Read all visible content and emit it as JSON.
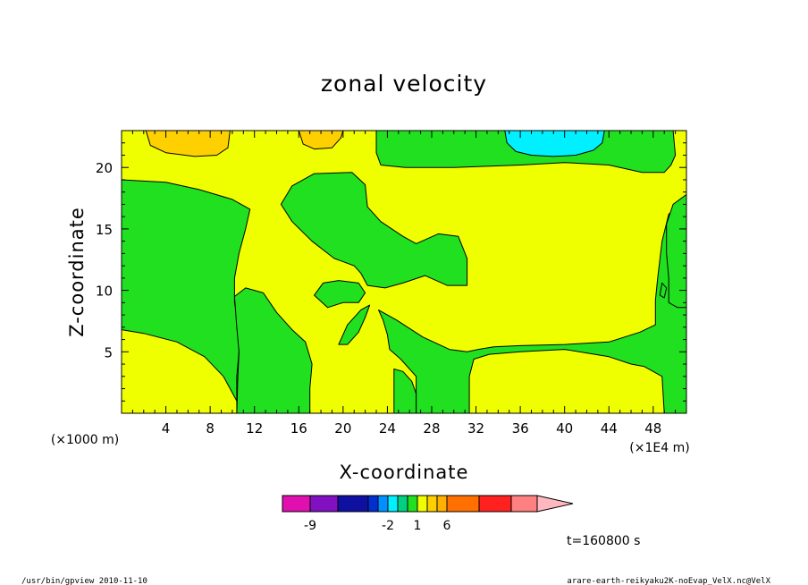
{
  "chart_data": {
    "type": "heatmap",
    "title": "zonal velocity",
    "xlabel": "X-coordinate",
    "ylabel": "Z-coordinate",
    "x_unit": "(×1000 m)",
    "x_scale": "(×1E4 m)",
    "xlim": [
      0,
      51
    ],
    "ylim": [
      0,
      23
    ],
    "x_ticks": [
      "4",
      "8",
      "12",
      "16",
      "20",
      "24",
      "28",
      "32",
      "36",
      "40",
      "44",
      "48"
    ],
    "y_ticks": [
      "5",
      "10",
      "15",
      "20"
    ],
    "levels": [
      {
        "color": "#e010b0"
      },
      {
        "color": "#8010c0"
      },
      {
        "color": "#1010a0"
      },
      {
        "color": "#0030d0"
      },
      {
        "color": "#0090ff"
      },
      {
        "color": "#00f0ff"
      },
      {
        "color": "#00d080"
      },
      {
        "color": "#20e020"
      },
      {
        "color": "#f0ff00"
      },
      {
        "color": "#ffd000"
      },
      {
        "color": "#ffb000"
      },
      {
        "color": "#ff7000"
      },
      {
        "color": "#ff2020"
      },
      {
        "color": "#ff8080"
      },
      {
        "color": "#ffb8c0"
      }
    ],
    "colorbar_labels": [
      {
        "text": "-9",
        "index": 1
      },
      {
        "text": "-2",
        "index": 5
      },
      {
        "text": "1",
        "index": 8
      },
      {
        "text": "6",
        "index": 11
      }
    ],
    "background_color": "#f0ff00",
    "regions": [
      {
        "name": "region-green-left",
        "color": "#20e020",
        "points": [
          [
            0,
            19
          ],
          [
            4,
            18.8
          ],
          [
            7,
            18.2
          ],
          [
            10,
            17.4
          ],
          [
            11.6,
            16.6
          ],
          [
            11.2,
            15
          ],
          [
            10.6,
            13
          ],
          [
            10.2,
            11
          ],
          [
            10.2,
            9
          ],
          [
            10.6,
            7
          ],
          [
            10.6,
            5
          ],
          [
            10.4,
            3
          ],
          [
            10.4,
            0
          ],
          [
            0,
            0
          ]
        ]
      },
      {
        "name": "region-yellow-bottom-left",
        "color": "#f0ff00",
        "points": [
          [
            0,
            6.8
          ],
          [
            2,
            6.5
          ],
          [
            5,
            5.8
          ],
          [
            7.5,
            4.6
          ],
          [
            9.2,
            3
          ],
          [
            10.4,
            1
          ],
          [
            10.4,
            0
          ],
          [
            0,
            0
          ]
        ]
      },
      {
        "name": "region-green-bottom-center",
        "color": "#20e020",
        "points": [
          [
            10.4,
            0
          ],
          [
            10.5,
            3
          ],
          [
            10.6,
            5
          ],
          [
            10.4,
            7
          ],
          [
            10.2,
            9.5
          ],
          [
            11.2,
            10.2
          ],
          [
            12.8,
            9.8
          ],
          [
            14,
            8.2
          ],
          [
            15.4,
            6.8
          ],
          [
            16.6,
            5.8
          ],
          [
            17.2,
            4
          ],
          [
            17,
            2
          ],
          [
            17,
            0
          ]
        ]
      },
      {
        "name": "region-green-arm",
        "color": "#20e020",
        "points": [
          [
            14.4,
            17
          ],
          [
            15.4,
            18.5
          ],
          [
            17.4,
            19.5
          ],
          [
            20.8,
            19.6
          ],
          [
            22,
            18.6
          ],
          [
            22.2,
            16.8
          ],
          [
            23.4,
            15.6
          ],
          [
            25.4,
            14.4
          ],
          [
            26.6,
            13.8
          ],
          [
            28.6,
            14.6
          ],
          [
            30.4,
            14.4
          ],
          [
            31.2,
            12.6
          ],
          [
            31.2,
            10.4
          ],
          [
            29.4,
            10.4
          ],
          [
            27.4,
            11.2
          ],
          [
            25.4,
            10.6
          ],
          [
            23.8,
            10.2
          ],
          [
            22.2,
            10.4
          ],
          [
            21.6,
            11.4
          ],
          [
            21,
            12
          ],
          [
            19.2,
            12.6
          ],
          [
            17.2,
            14
          ],
          [
            15.4,
            15.6
          ]
        ]
      },
      {
        "name": "region-green-lobe-small",
        "color": "#20e020",
        "points": [
          [
            17.4,
            9.6
          ],
          [
            18.2,
            10.6
          ],
          [
            19.6,
            10.8
          ],
          [
            21.4,
            10.6
          ],
          [
            22,
            9.8
          ],
          [
            21.4,
            9
          ],
          [
            20,
            9
          ],
          [
            18.6,
            8.6
          ]
        ]
      },
      {
        "name": "region-green-slanted",
        "color": "#20e020",
        "points": [
          [
            19.6,
            5.6
          ],
          [
            20.4,
            7.2
          ],
          [
            21.6,
            8.4
          ],
          [
            22.4,
            8.8
          ],
          [
            22,
            7.8
          ],
          [
            21.4,
            6.6
          ],
          [
            20.4,
            5.6
          ]
        ]
      },
      {
        "name": "region-green-right-big",
        "color": "#20e020",
        "points": [
          [
            23.2,
            8.4
          ],
          [
            24.8,
            7.6
          ],
          [
            27.2,
            6.2
          ],
          [
            29.6,
            5.2
          ],
          [
            31.2,
            5
          ],
          [
            32.2,
            5.2
          ],
          [
            33.6,
            5.4
          ],
          [
            36,
            5.5
          ],
          [
            40,
            5.6
          ],
          [
            44,
            5.8
          ],
          [
            46.8,
            6.6
          ],
          [
            48.2,
            7.2
          ],
          [
            48.2,
            9.2
          ],
          [
            48.4,
            11
          ],
          [
            48.8,
            14
          ],
          [
            49.4,
            16.2
          ],
          [
            51,
            17.4
          ],
          [
            51,
            0
          ],
          [
            49,
            0
          ],
          [
            48.8,
            3
          ],
          [
            47.2,
            3.8
          ],
          [
            46,
            4
          ],
          [
            44,
            4.6
          ],
          [
            40,
            5.2
          ],
          [
            36,
            5
          ],
          [
            33.2,
            4.8
          ],
          [
            31.8,
            4.4
          ],
          [
            31.4,
            3
          ],
          [
            31.4,
            0
          ],
          [
            26.6,
            0
          ],
          [
            26.6,
            3
          ],
          [
            25.2,
            4.4
          ],
          [
            24.2,
            5.2
          ],
          [
            24,
            6.4
          ],
          [
            23.6,
            7.6
          ]
        ]
      },
      {
        "name": "region-green-bottom-finger",
        "color": "#20e020",
        "points": [
          [
            24.6,
            0
          ],
          [
            24.6,
            3.6
          ],
          [
            25.4,
            3.4
          ],
          [
            26.2,
            2.6
          ],
          [
            26.6,
            1.6
          ],
          [
            26.6,
            0
          ]
        ]
      },
      {
        "name": "region-green-top-band",
        "color": "#20e020",
        "points": [
          [
            23,
            23
          ],
          [
            23,
            21.2
          ],
          [
            23.4,
            20.2
          ],
          [
            25.6,
            20
          ],
          [
            30,
            20
          ],
          [
            36,
            20.2
          ],
          [
            40,
            20.4
          ],
          [
            44,
            20.2
          ],
          [
            47,
            19.6
          ],
          [
            49,
            19.6
          ],
          [
            49.6,
            20.2
          ],
          [
            50,
            21
          ],
          [
            49.8,
            23
          ]
        ]
      },
      {
        "name": "region-green-small-right",
        "color": "#20e020",
        "points": [
          [
            48.6,
            9.6
          ],
          [
            48.8,
            10.6
          ],
          [
            49.2,
            10.2
          ],
          [
            49,
            9.4
          ]
        ]
      },
      {
        "name": "region-green-right-edge",
        "color": "#20e020",
        "points": [
          [
            51,
            17.8
          ],
          [
            49.8,
            17
          ],
          [
            49.2,
            15.4
          ],
          [
            49.2,
            13
          ],
          [
            49.4,
            11
          ],
          [
            49.4,
            9
          ],
          [
            50.2,
            8.6
          ],
          [
            51,
            8.6
          ]
        ]
      },
      {
        "name": "region-cyan-top",
        "color": "#00f0ff",
        "points": [
          [
            34.6,
            23
          ],
          [
            34.8,
            22
          ],
          [
            35.6,
            21.3
          ],
          [
            37,
            21
          ],
          [
            39,
            20.9
          ],
          [
            41,
            21
          ],
          [
            42.6,
            21.4
          ],
          [
            43.4,
            22
          ],
          [
            43.6,
            23
          ]
        ]
      },
      {
        "name": "region-orange-top-left",
        "color": "#ffd000",
        "points": [
          [
            2.2,
            23
          ],
          [
            2.6,
            21.8
          ],
          [
            4,
            21.2
          ],
          [
            6.6,
            20.9
          ],
          [
            8.6,
            21
          ],
          [
            9.6,
            21.6
          ],
          [
            9.8,
            23
          ]
        ]
      },
      {
        "name": "region-orange-top-mid",
        "color": "#ffd000",
        "points": [
          [
            16,
            23
          ],
          [
            16.4,
            21.9
          ],
          [
            17.4,
            21.5
          ],
          [
            19,
            21.6
          ],
          [
            19.8,
            22.4
          ],
          [
            20,
            23
          ]
        ]
      }
    ]
  },
  "timestamp": "t=160800 s",
  "footer": {
    "left": "/usr/bin/gpview   2010-11-10",
    "right": "arare-earth-reikyaku2K-noEvap_VelX.nc@VelX"
  }
}
